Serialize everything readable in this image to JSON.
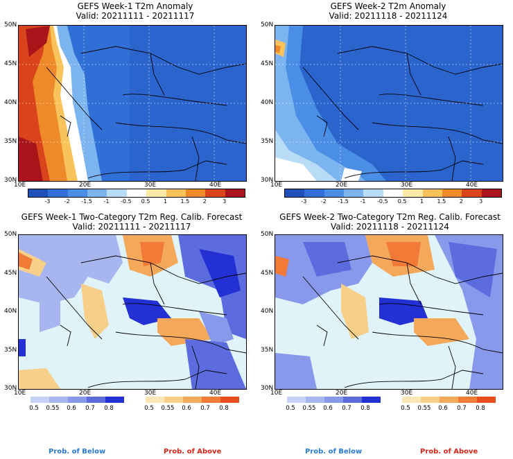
{
  "panels": {
    "p1": {
      "title": "GEFS Week-1 T2m Anomaly",
      "valid": "Valid: 20211111 - 20211117"
    },
    "p2": {
      "title": "GEFS Week-2 T2m Anomaly",
      "valid": "Valid: 20211118 - 20211124"
    },
    "p3": {
      "title": "GEFS Week-1 Two-Category T2m Reg. Calib. Forecast",
      "valid": "Valid: 20211111 - 20211117"
    },
    "p4": {
      "title": "GEFS Week-2 Two-Category T2m Reg. Calib. Forecast",
      "valid": "Valid: 20211118 - 20211124"
    }
  },
  "axes": {
    "lat_labels": [
      "50N",
      "45N",
      "40N",
      "35N",
      "30N"
    ],
    "lon_labels": [
      "10E",
      "20E",
      "30E",
      "40E"
    ]
  },
  "anomaly_colorbar": {
    "labels": [
      "-3",
      "-2",
      "-1.5",
      "-1",
      "-0.5",
      "0.5",
      "1",
      "1.5",
      "2",
      "3"
    ],
    "colors": [
      "#1f4fb8",
      "#2f6fd6",
      "#4a8ee6",
      "#7cb4f0",
      "#b9dcf6",
      "#ffffff",
      "#fde9a8",
      "#f7c35a",
      "#ef8a2a",
      "#d9441c",
      "#a9141a"
    ]
  },
  "prob_below": {
    "labels": [
      "0.5",
      "0.55",
      "0.6",
      "0.7",
      "0.8"
    ],
    "colors": [
      "#c6d2f4",
      "#a7b6ef",
      "#8898ea",
      "#5c6cdf",
      "#2230d4"
    ],
    "footer": "Prob. of Below",
    "footer_color": "#2a7bd8"
  },
  "prob_above": {
    "labels": [
      "0.5",
      "0.55",
      "0.6",
      "0.7",
      "0.8"
    ],
    "colors": [
      "#fbe7b5",
      "#f8cf88",
      "#f4a95a",
      "#f07a36",
      "#e84d1e"
    ],
    "footer": "Prob. of Above",
    "footer_color": "#d8261a"
  }
}
